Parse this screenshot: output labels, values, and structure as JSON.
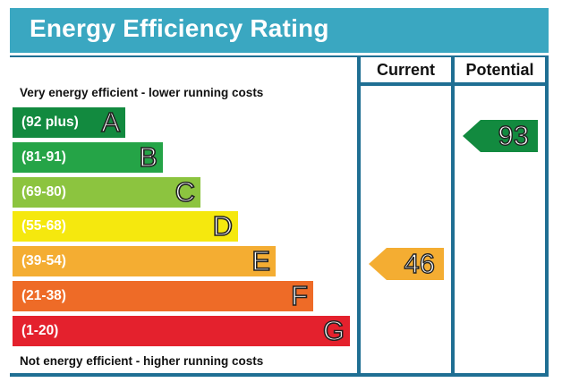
{
  "title": "Energy Efficiency Rating",
  "headers": {
    "current": "Current",
    "potential": "Potential"
  },
  "notes": {
    "top": "Very energy efficient - lower running costs",
    "bottom": "Not energy efficient - higher running costs"
  },
  "colors": {
    "title_bar": "#3aa7c1",
    "frame": "#1f6f93",
    "A": "#128a3f",
    "B": "#25a447",
    "C": "#8cc43f",
    "D": "#f5e80e",
    "E": "#f4ad32",
    "F": "#ee6b27",
    "G": "#e4212d"
  },
  "chart_data": {
    "type": "bar",
    "title": "Energy Efficiency Rating",
    "categories": [
      "A",
      "B",
      "C",
      "D",
      "E",
      "F",
      "G"
    ],
    "ranges": [
      "(92 plus)",
      "(81-91)",
      "(69-80)",
      "(55-68)",
      "(39-54)",
      "(21-38)",
      "(1-20)"
    ],
    "current": {
      "value": 46,
      "label": "46",
      "band": "E"
    },
    "potential": {
      "value": 93,
      "label": "93",
      "band": "A"
    }
  }
}
